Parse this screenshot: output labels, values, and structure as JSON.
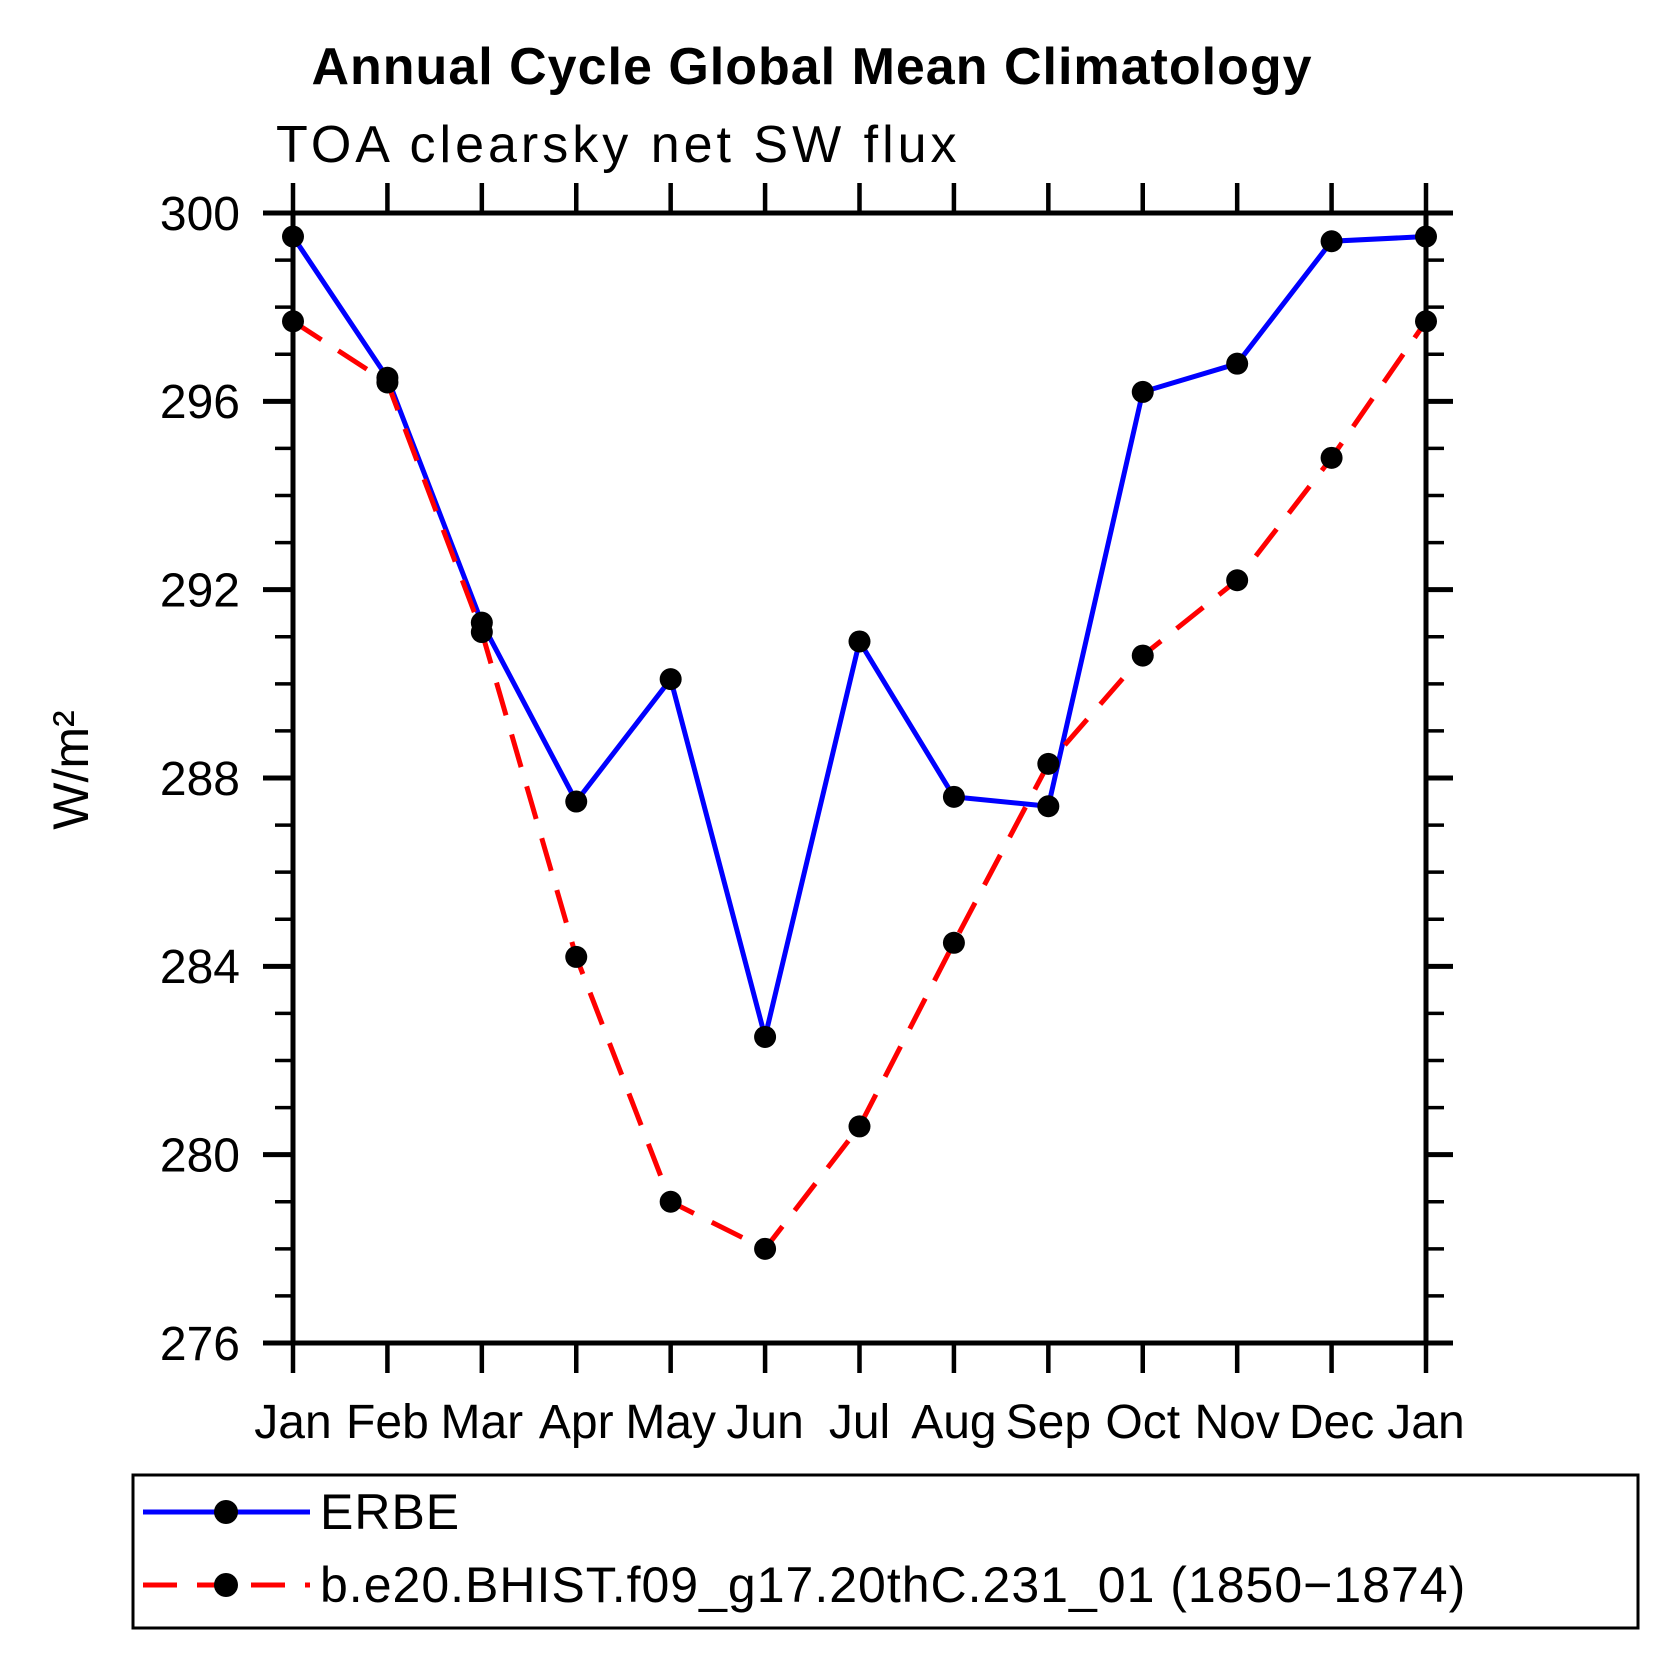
{
  "title": "Annual Cycle Global Mean Climatology",
  "subtitle": "TOA clearsky net SW flux",
  "ylabel": "W/m²",
  "chart_data": {
    "type": "line",
    "x_categories": [
      "Jan",
      "Feb",
      "Mar",
      "Apr",
      "May",
      "Jun",
      "Jul",
      "Aug",
      "Sep",
      "Oct",
      "Nov",
      "Dec",
      "Jan"
    ],
    "ylim": [
      276,
      300
    ],
    "ytick_major": [
      276,
      280,
      284,
      288,
      292,
      296,
      300
    ],
    "ytick_minor_step": 1,
    "grid": false,
    "marker": {
      "shape": "circle",
      "color": "#000000"
    },
    "series": [
      {
        "name": "ERBE",
        "color": "#0000ff",
        "style": "solid",
        "values": [
          299.5,
          296.5,
          291.3,
          287.5,
          290.1,
          282.5,
          290.9,
          287.6,
          287.4,
          296.2,
          296.8,
          299.4,
          299.5
        ]
      },
      {
        "name": "b.e20.BHIST.f09_g17.20thC.231_01 (1850−1874)",
        "color": "#ff0000",
        "style": "dashed",
        "values": [
          297.7,
          296.4,
          291.1,
          284.2,
          279.0,
          278.0,
          280.6,
          284.5,
          288.3,
          290.6,
          292.2,
          294.8,
          297.7
        ]
      }
    ],
    "legend_position": "bottom"
  }
}
